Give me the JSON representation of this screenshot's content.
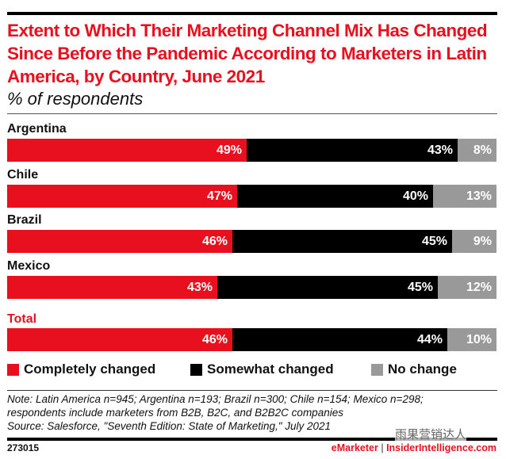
{
  "header": {
    "title": "Extent to Which Their Marketing Channel Mix Has Changed Since Before the Pandemic According to Marketers in Latin America, by Country, June 2021",
    "subtitle": "% of respondents"
  },
  "colors": {
    "completely": "#e8101f",
    "somewhat": "#000000",
    "no_change": "#999999",
    "total_label": "#e8101f"
  },
  "chart_data": {
    "type": "bar",
    "orientation": "horizontal",
    "stacked": true,
    "title": "Extent to Which Their Marketing Channel Mix Has Changed Since Before the Pandemic According to Marketers in Latin America, by Country, June 2021",
    "subtitle": "% of respondents",
    "xlabel": "",
    "ylabel": "",
    "xlim": [
      0,
      100
    ],
    "grid": false,
    "legend_position": "bottom",
    "categories": [
      "Argentina",
      "Chile",
      "Brazil",
      "Mexico",
      "Total"
    ],
    "series": [
      {
        "name": "Completely changed",
        "values": [
          49,
          47,
          46,
          43,
          46
        ]
      },
      {
        "name": "Somewhat changed",
        "values": [
          43,
          40,
          45,
          45,
          44
        ]
      },
      {
        "name": "No change",
        "values": [
          8,
          13,
          9,
          12,
          10
        ]
      }
    ],
    "data_labels": [
      [
        "49%",
        "43%",
        "8%"
      ],
      [
        "47%",
        "40%",
        "13%"
      ],
      [
        "46%",
        "45%",
        "9%"
      ],
      [
        "43%",
        "45%",
        "12%"
      ],
      [
        "46%",
        "44%",
        "10%"
      ]
    ]
  },
  "legend": [
    "Completely changed",
    "Somewhat changed",
    "No change"
  ],
  "notes": {
    "line1": "Note: Latin America n=945; Argentina n=193; Brazil n=300; Chile n=154; Mexico n=298;",
    "line2": "respondents include marketers from B2B, B2C, and B2B2C companies",
    "source": "Source: Salesforce, \"Seventh Edition: State of Marketing,\" July 2021"
  },
  "footer": {
    "id": "273015",
    "brand1": "eMarketer",
    "separator": "|",
    "brand2": "InsiderIntelligence.com",
    "watermark": "雨果营销达人"
  }
}
